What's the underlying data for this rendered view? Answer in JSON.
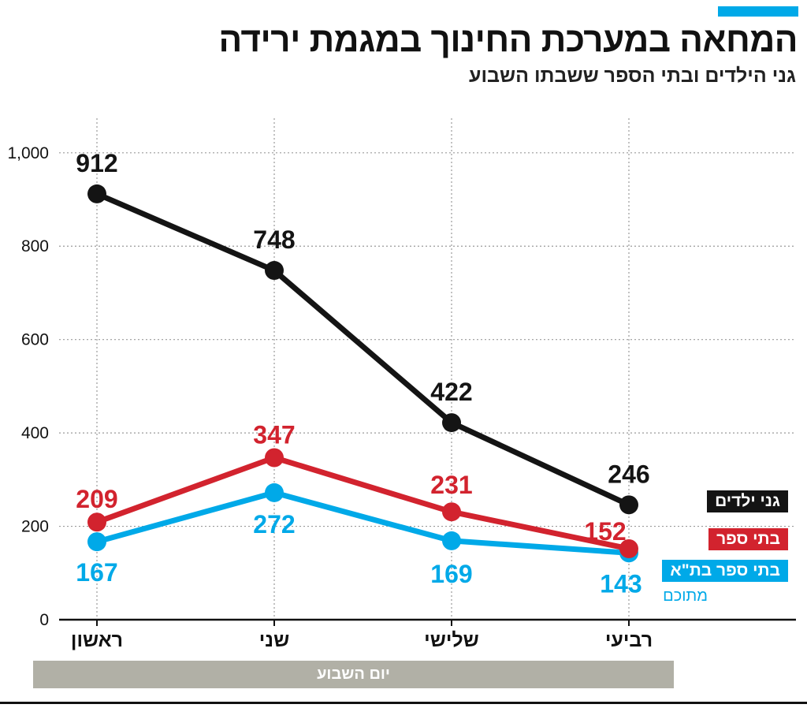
{
  "header": {
    "title": "המחאה במערכת החינוך במגמת ירידה",
    "subtitle": "גני הילדים ובתי הספר ששבתו השבוע"
  },
  "colors": {
    "accent": "#00a9e8",
    "series_black": "#141414",
    "series_red": "#d2232e",
    "series_blue": "#00a9e8",
    "band": "#b1b0a6"
  },
  "chart_data": {
    "type": "line",
    "categories": [
      "ראשון",
      "שני",
      "שלישי",
      "רביעי"
    ],
    "xlabel": "יום השבוע",
    "ylabel": "",
    "ylim": [
      0,
      1000
    ],
    "yticks": [
      0,
      200,
      400,
      600,
      800,
      1000
    ],
    "ytick_labels": [
      "0",
      "200",
      "400",
      "600",
      "800",
      "1,000"
    ],
    "grid": true,
    "legend_position": "right, at line ends",
    "series": [
      {
        "name": "גני ילדים",
        "values": [
          912,
          748,
          422,
          246
        ],
        "color": "#141414"
      },
      {
        "name": "בתי ספר",
        "values": [
          209,
          347,
          231,
          152
        ],
        "color": "#d2232e"
      },
      {
        "name": "בתי ספר בת\"א",
        "note": "מתוכם",
        "values": [
          167,
          272,
          169,
          143
        ],
        "color": "#00a9e8"
      }
    ]
  }
}
